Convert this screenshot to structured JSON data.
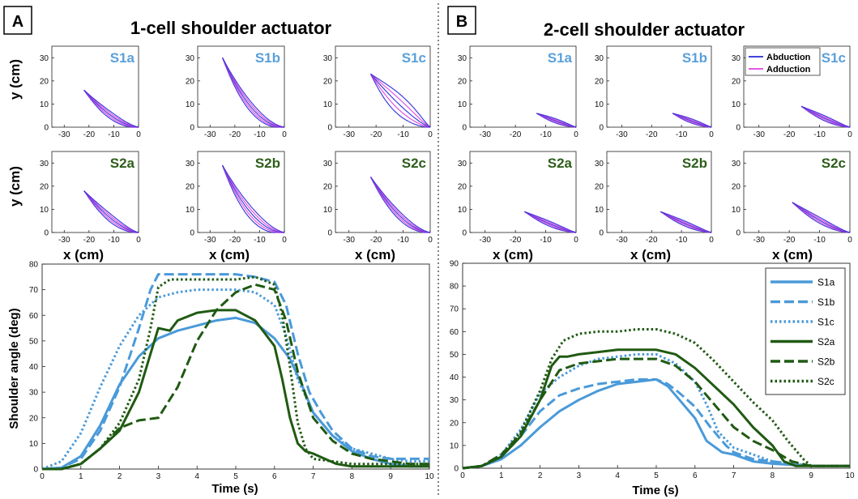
{
  "figure": {
    "panel_A_letter": "A",
    "panel_B_letter": "B",
    "panel_A_title": "1-cell shoulder actuator",
    "panel_B_title": "2-cell shoulder actuator",
    "y_cm_label": "y (cm)",
    "x_cm_label": "x (cm)",
    "angle_label": "Shoulder angle (deg)",
    "time_label": "Time (s)",
    "small_legend": [
      "Abduction",
      "Adduction"
    ]
  },
  "colors": {
    "s1": "#4a9ad9",
    "s2": "#1f5a12",
    "abduction": "#2a2ad8",
    "adduction": "#e040e0",
    "id_s1": "#5aa0da",
    "id_s2": "#2d5e1a"
  },
  "chart_data": [
    {
      "type": "line",
      "title": "1-cell shoulder actuator",
      "subplots": [
        {
          "id": "S1a",
          "endpoint": [
            -22,
            16
          ],
          "curve": 1.7,
          "spread": 1.2
        },
        {
          "id": "S1b",
          "endpoint": [
            -25,
            30
          ],
          "curve": 2.0,
          "spread": 1.4
        },
        {
          "id": "S1c",
          "endpoint": [
            -22,
            23
          ],
          "curve": 1.3,
          "spread": 3.2
        },
        {
          "id": "S2a",
          "endpoint": [
            -22,
            18
          ],
          "curve": 1.6,
          "spread": 1.3
        },
        {
          "id": "S2b",
          "endpoint": [
            -25,
            29
          ],
          "curve": 2.0,
          "spread": 1.8
        },
        {
          "id": "S2c",
          "endpoint": [
            -22,
            24
          ],
          "curve": 1.8,
          "spread": 1.2
        }
      ],
      "subplot_xlim": [
        -35,
        0
      ],
      "subplot_ylim": [
        0,
        35
      ],
      "subplot_xticks": [
        -30,
        -20,
        -10,
        0
      ],
      "subplot_yticks": [
        0,
        10,
        20,
        30
      ],
      "angle": {
        "xlabel": "Time (s)",
        "ylabel": "Shoulder angle (deg)",
        "xlim": [
          0,
          10
        ],
        "ylim": [
          0,
          80
        ],
        "xticks": [
          0,
          1,
          2,
          3,
          4,
          5,
          6,
          7,
          8,
          9,
          10
        ],
        "yticks": [
          0,
          10,
          20,
          30,
          40,
          50,
          60,
          70,
          80
        ],
        "series": [
          {
            "name": "S1a",
            "x": [
              0,
              0.5,
              1,
              1.5,
              2,
              2.5,
              3,
              3.5,
              4,
              4.5,
              5,
              5.5,
              6,
              6.4,
              6.7,
              7,
              7.5,
              8,
              8.5,
              9,
              9.5,
              10
            ],
            "y": [
              0,
              0.5,
              5,
              17,
              33,
              44,
              51,
              54,
              56,
              58,
              59,
              57,
              51,
              43,
              33,
              22,
              13,
              7,
              4,
              2,
              1,
              1
            ]
          },
          {
            "name": "S1b",
            "x": [
              0,
              0.5,
              1,
              1.5,
              2,
              2.5,
              2.8,
              3,
              3.5,
              4,
              4.5,
              5,
              5.5,
              6,
              6.3,
              6.6,
              6.9,
              7.2,
              7.5,
              8,
              8.5,
              9,
              9.5,
              10
            ],
            "y": [
              0,
              0.5,
              4,
              15,
              32,
              55,
              70,
              76,
              76,
              76,
              76,
              76,
              75,
              73,
              64,
              45,
              30,
              22,
              15,
              8,
              5,
              4,
              4,
              4
            ]
          },
          {
            "name": "S1c",
            "x": [
              0,
              0.5,
              1,
              1.5,
              2,
              2.5,
              3,
              3.5,
              4,
              4.5,
              5,
              5.5,
              6,
              6.3,
              6.6,
              7,
              7.5,
              8,
              8.5,
              9,
              9.5,
              10
            ],
            "y": [
              0,
              3,
              14,
              32,
              48,
              60,
              67,
              69,
              70,
              70,
              70,
              69,
              64,
              52,
              35,
              22,
              13,
              8,
              6,
              4,
              3,
              3
            ]
          },
          {
            "name": "S2a",
            "x": [
              0,
              0.5,
              1,
              1.5,
              2,
              2.5,
              2.8,
              3,
              3.3,
              3.5,
              4,
              4.5,
              5,
              5.5,
              6,
              6.2,
              6.4,
              6.6,
              6.8,
              7,
              7.3,
              7.6,
              8,
              8.5,
              9,
              10
            ],
            "y": [
              0,
              0,
              2,
              8,
              15,
              30,
              45,
              55,
              54,
              58,
              61,
              62,
              62,
              58,
              48,
              35,
              20,
              10,
              7,
              6,
              4,
              2,
              1,
              1,
              1,
              1
            ]
          },
          {
            "name": "S2b",
            "x": [
              0,
              0.5,
              1,
              1.5,
              2,
              2.5,
              3,
              3.5,
              4,
              4.5,
              5,
              5.5,
              6,
              6.3,
              6.6,
              7,
              7.5,
              8,
              8.5,
              9,
              9.5,
              10
            ],
            "y": [
              0,
              0,
              2,
              8,
              16,
              19,
              20,
              32,
              50,
              62,
              69,
              72,
              70,
              58,
              38,
              20,
              11,
              6,
              4,
              3,
              2,
              2
            ]
          },
          {
            "name": "S2c",
            "x": [
              0,
              0.5,
              1,
              1.5,
              2,
              2.5,
              2.8,
              3,
              3.3,
              4,
              4.5,
              5,
              5.5,
              6,
              6.2,
              6.4,
              6.6,
              6.8,
              7,
              7.5,
              8,
              8.5,
              9,
              10
            ],
            "y": [
              0,
              0,
              2,
              8,
              18,
              35,
              55,
              71,
              74,
              74,
              74,
              74,
              75,
              72,
              60,
              40,
              18,
              8,
              4,
              3,
              2,
              2,
              2,
              2
            ]
          }
        ]
      }
    },
    {
      "type": "line",
      "title": "2-cell shoulder actuator",
      "subplots": [
        {
          "id": "S1a",
          "endpoint": [
            -13,
            6
          ],
          "curve": 1.2,
          "spread": 0.8
        },
        {
          "id": "S1b",
          "endpoint": [
            -13,
            6
          ],
          "curve": 1.2,
          "spread": 0.8
        },
        {
          "id": "S1c",
          "endpoint": [
            -16,
            9
          ],
          "curve": 1.3,
          "spread": 0.9
        },
        {
          "id": "S2a",
          "endpoint": [
            -17,
            9
          ],
          "curve": 1.3,
          "spread": 0.9
        },
        {
          "id": "S2b",
          "endpoint": [
            -17,
            9
          ],
          "curve": 1.3,
          "spread": 0.9
        },
        {
          "id": "S2c",
          "endpoint": [
            -19,
            13
          ],
          "curve": 1.4,
          "spread": 1.0
        }
      ],
      "subplot_xlim": [
        -35,
        0
      ],
      "subplot_ylim": [
        0,
        35
      ],
      "subplot_xticks": [
        -30,
        -20,
        -10,
        0
      ],
      "subplot_yticks": [
        0,
        10,
        20,
        30
      ],
      "angle": {
        "xlabel": "Time (s)",
        "ylabel": "Shoulder angle (deg)",
        "xlim": [
          0,
          10
        ],
        "ylim": [
          0,
          90
        ],
        "xticks": [
          0,
          1,
          2,
          3,
          4,
          5,
          6,
          7,
          8,
          9,
          10
        ],
        "yticks": [
          0,
          10,
          20,
          30,
          40,
          50,
          60,
          70,
          80,
          90
        ],
        "series": [
          {
            "name": "S1a",
            "x": [
              0,
              0.5,
              1,
              1.5,
              2,
              2.5,
              3,
              3.5,
              4,
              4.5,
              5,
              5.3,
              5.6,
              6,
              6.3,
              6.7,
              7,
              7.5,
              8,
              9,
              10
            ],
            "y": [
              0,
              1,
              4,
              10,
              18,
              25,
              30,
              34,
              37,
              38,
              39,
              36,
              30,
              22,
              12,
              7,
              6,
              3,
              2,
              1,
              1
            ]
          },
          {
            "name": "S1b",
            "x": [
              0,
              0.5,
              1,
              1.5,
              2,
              2.5,
              3,
              3.5,
              4,
              4.5,
              5,
              5.3,
              5.6,
              6,
              6.4,
              6.8,
              7,
              7.5,
              8,
              9,
              10
            ],
            "y": [
              0,
              1,
              5,
              14,
              25,
              32,
              35,
              37,
              38,
              39,
              39,
              37,
              33,
              27,
              18,
              10,
              7,
              4,
              3,
              1,
              1
            ]
          },
          {
            "name": "S1c",
            "x": [
              0,
              0.5,
              1,
              1.5,
              2,
              2.5,
              3,
              3.5,
              4,
              4.5,
              5,
              5.5,
              6,
              6.3,
              6.6,
              7,
              7.5,
              8,
              9,
              10
            ],
            "y": [
              0,
              1,
              6,
              17,
              33,
              40,
              45,
              48,
              49,
              50,
              50,
              46,
              38,
              28,
              16,
              9,
              6,
              3,
              1,
              1
            ]
          },
          {
            "name": "S2a",
            "x": [
              0,
              0.5,
              1,
              1.5,
              2,
              2.3,
              2.5,
              2.7,
              3,
              3.5,
              4,
              4.5,
              5,
              5.5,
              6,
              6.5,
              7,
              7.5,
              8,
              8.3,
              8.6,
              9,
              10
            ],
            "y": [
              0,
              1,
              5,
              14,
              30,
              45,
              49,
              49,
              50,
              51,
              52,
              52,
              52,
              50,
              44,
              36,
              28,
              18,
              10,
              3,
              1,
              1,
              1
            ]
          },
          {
            "name": "S2b",
            "x": [
              0,
              0.5,
              1,
              1.5,
              2,
              2.5,
              3,
              3.5,
              4,
              4.5,
              5,
              5.5,
              6,
              6.5,
              7,
              7.5,
              8,
              8.5,
              9,
              10
            ],
            "y": [
              0,
              1,
              6,
              15,
              30,
              43,
              46,
              47,
              48,
              48,
              48,
              45,
              38,
              28,
              18,
              12,
              8,
              3,
              1,
              1
            ]
          },
          {
            "name": "S2c",
            "x": [
              0,
              0.5,
              1,
              1.5,
              2,
              2.3,
              2.6,
              3,
              3.5,
              4,
              4.5,
              5,
              5.5,
              6,
              6.5,
              7,
              7.5,
              8,
              8.4,
              8.8,
              9,
              10
            ],
            "y": [
              0,
              1,
              5,
              16,
              34,
              48,
              56,
              59,
              60,
              60,
              61,
              61,
              59,
              55,
              47,
              38,
              29,
              21,
              12,
              4,
              1,
              1
            ]
          }
        ]
      }
    }
  ]
}
